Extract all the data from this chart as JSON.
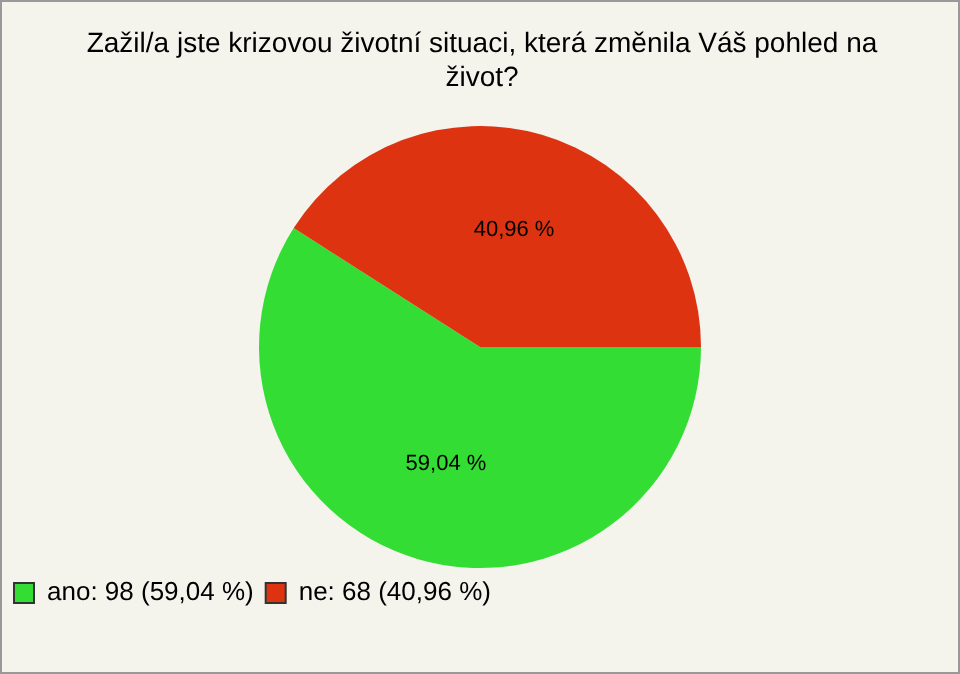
{
  "chart_data": {
    "type": "pie",
    "title": "Zažil/a jste krizovou životní situaci, která změnila Váš pohled na život?",
    "categories": [
      "ano: 98 (59,04 %)",
      "ne: 68 (40,96 %)"
    ],
    "values": [
      59.04,
      40.96
    ],
    "colors": [
      "#33dd33",
      "#dd3311"
    ],
    "value_labels": [
      "59,04 %",
      "40,96 %"
    ],
    "legend": "bottom left"
  }
}
